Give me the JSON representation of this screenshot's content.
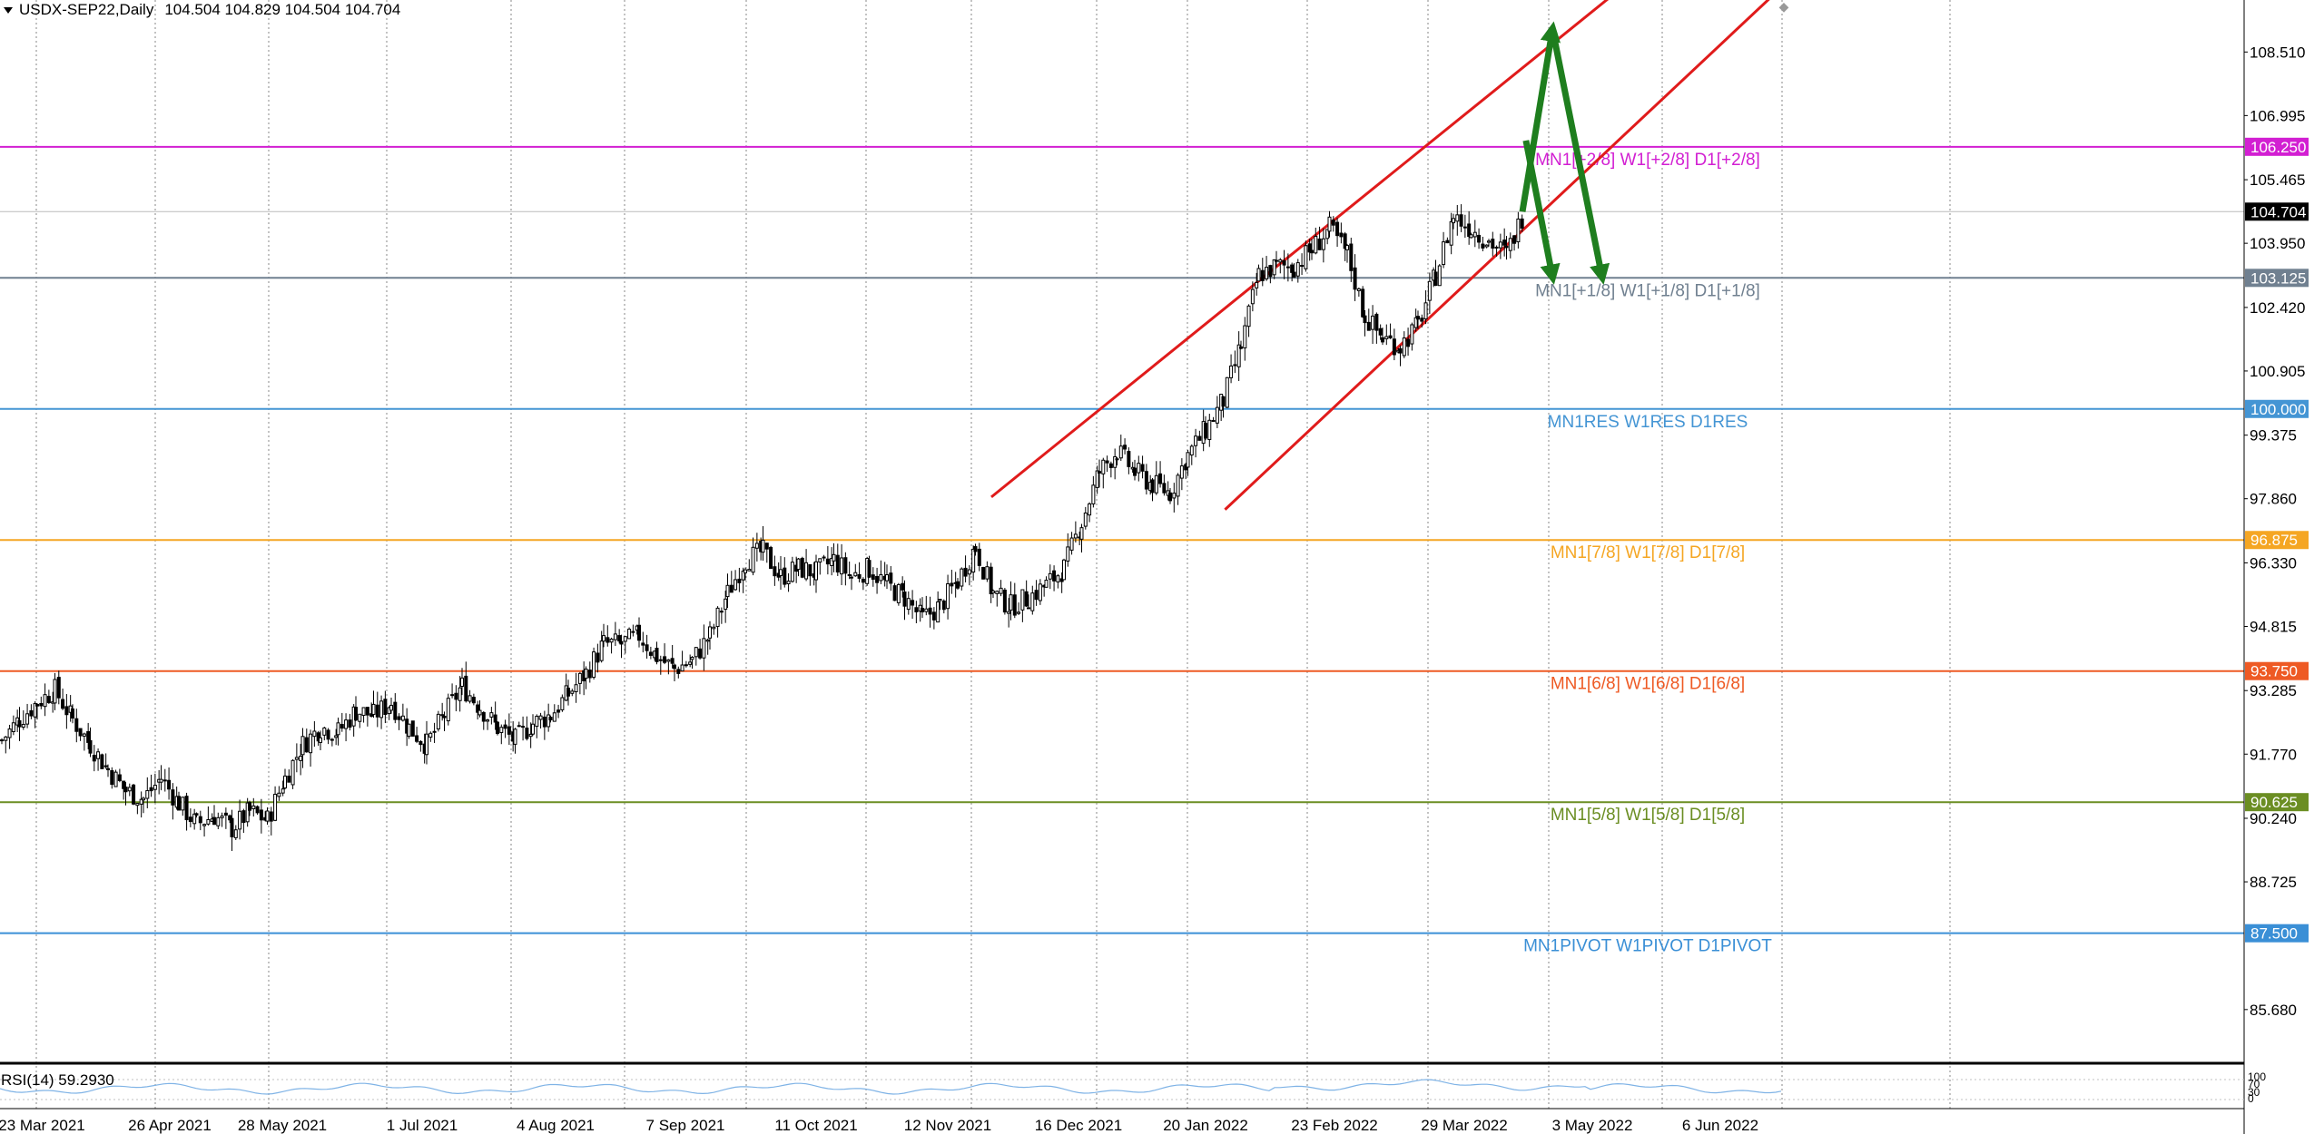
{
  "header": {
    "symbol_label": "USDX-SEP22,Daily",
    "ohlc_label": "104.504 104.829 104.504 104.704"
  },
  "rsi": {
    "label": "RSI(14) 59.2930",
    "scale_labels": [
      "100",
      "70",
      "30",
      "0"
    ]
  },
  "chart_data": {
    "type": "candlestick",
    "symbol": "USDX-SEP22",
    "timeframe": "Daily",
    "last": {
      "open": 104.504,
      "high": 104.829,
      "low": 104.504,
      "close": 104.704
    },
    "ylim": [
      84.4,
      109.75
    ],
    "y_ticks": [
      108.51,
      106.995,
      105.465,
      103.95,
      102.42,
      100.905,
      99.375,
      97.86,
      96.33,
      94.815,
      93.285,
      91.77,
      90.24,
      88.725,
      85.68
    ],
    "x_labels": [
      "23 Mar 2021",
      "26 Apr 2021",
      "28 May 2021",
      "1 Jul 2021",
      "4 Aug 2021",
      "7 Sep 2021",
      "11 Oct 2021",
      "12 Nov 2021",
      "16 Dec 2021",
      "20 Jan 2022",
      "23 Feb 2022",
      "29 Mar 2022",
      "3 May 2022",
      "6 Jun 2022"
    ],
    "close_path": [
      [
        0,
        92.1
      ],
      [
        10,
        92.6
      ],
      [
        20,
        93.0
      ],
      [
        30,
        93.3
      ],
      [
        40,
        92.6
      ],
      [
        50,
        92.0
      ],
      [
        60,
        91.4
      ],
      [
        70,
        90.9
      ],
      [
        80,
        90.7
      ],
      [
        90,
        91.2
      ],
      [
        100,
        90.6
      ],
      [
        110,
        90.1
      ],
      [
        120,
        90.3
      ],
      [
        130,
        90.0
      ],
      [
        140,
        90.4
      ],
      [
        150,
        90.2
      ],
      [
        160,
        91.2
      ],
      [
        170,
        92.0
      ],
      [
        180,
        92.4
      ],
      [
        190,
        92.3
      ],
      [
        200,
        92.8
      ],
      [
        210,
        92.7
      ],
      [
        220,
        93.0
      ],
      [
        230,
        92.4
      ],
      [
        240,
        92.0
      ],
      [
        250,
        92.7
      ],
      [
        260,
        93.4
      ],
      [
        270,
        92.9
      ],
      [
        280,
        92.4
      ],
      [
        290,
        92.1
      ],
      [
        300,
        92.5
      ],
      [
        310,
        92.7
      ],
      [
        320,
        93.2
      ],
      [
        330,
        93.7
      ],
      [
        340,
        94.4
      ],
      [
        350,
        94.4
      ],
      [
        360,
        94.6
      ],
      [
        370,
        94.1
      ],
      [
        380,
        93.8
      ],
      [
        390,
        94.0
      ],
      [
        400,
        94.6
      ],
      [
        410,
        95.6
      ],
      [
        420,
        96.4
      ],
      [
        430,
        96.6
      ],
      [
        440,
        96.0
      ],
      [
        450,
        96.2
      ],
      [
        460,
        96.1
      ],
      [
        470,
        96.4
      ],
      [
        480,
        96.0
      ],
      [
        490,
        96.2
      ],
      [
        500,
        95.8
      ],
      [
        510,
        95.5
      ],
      [
        520,
        95.0
      ],
      [
        530,
        95.3
      ],
      [
        540,
        95.9
      ],
      [
        550,
        96.7
      ],
      [
        560,
        95.6
      ],
      [
        570,
        95.3
      ],
      [
        580,
        95.5
      ],
      [
        590,
        95.8
      ],
      [
        600,
        96.2
      ],
      [
        610,
        97.3
      ],
      [
        620,
        98.5
      ],
      [
        630,
        99.0
      ],
      [
        640,
        98.5
      ],
      [
        650,
        98.2
      ],
      [
        660,
        98.0
      ],
      [
        670,
        98.9
      ],
      [
        680,
        99.5
      ],
      [
        690,
        100.2
      ],
      [
        700,
        101.5
      ],
      [
        710,
        103.2
      ],
      [
        720,
        103.4
      ],
      [
        730,
        103.4
      ],
      [
        740,
        103.8
      ],
      [
        750,
        104.3
      ],
      [
        760,
        103.7
      ],
      [
        770,
        102.2
      ],
      [
        780,
        101.7
      ],
      [
        790,
        101.5
      ],
      [
        800,
        102.0
      ],
      [
        810,
        103.2
      ],
      [
        820,
        104.6
      ],
      [
        830,
        104.3
      ],
      [
        840,
        104.0
      ],
      [
        850,
        103.7
      ],
      [
        860,
        104.704
      ]
    ],
    "horizontal_levels": [
      {
        "value": 106.25,
        "label": "MN1[+2/8] W1[+2/8] D1[+2/8]",
        "price_tag": "106.250",
        "color": "#d21fd2"
      },
      {
        "value": 103.125,
        "label": "MN1[+1/8] W1[+1/8] D1[+1/8]",
        "price_tag": "103.125",
        "color": "#708090"
      },
      {
        "value": 100.0,
        "label": "MN1RES W1RES D1RES",
        "price_tag": "100.000",
        "color": "#4495d4"
      },
      {
        "value": 96.875,
        "label": "MN1[7/8] W1[7/8] D1[7/8]",
        "price_tag": "96.875",
        "color": "#f5a623"
      },
      {
        "value": 93.75,
        "label": "MN1[6/8] W1[6/8] D1[6/8]",
        "price_tag": "93.750",
        "color": "#ee5a24"
      },
      {
        "value": 90.625,
        "label": "MN1[5/8] W1[5/8] D1[5/8]",
        "price_tag": "90.625",
        "color": "#6b8e23"
      },
      {
        "value": 87.5,
        "label": "MN1PIVOT W1PIVOT D1PIVOT",
        "price_tag": "87.500",
        "color": "#3a8fd6"
      }
    ],
    "current_price_tag": "104.704",
    "channel": {
      "color": "#e01b1b",
      "upper": [
        [
          560,
          97.9
        ],
        [
          909,
          109.8
        ]
      ],
      "lower": [
        [
          692,
          97.6
        ],
        [
          1000,
          109.8
        ]
      ]
    },
    "projection_arrows": {
      "color": "#1e7e1e",
      "upper_path": [
        [
          860,
          104.704
        ],
        [
          877,
          109.05
        ],
        [
          905,
          103.15
        ]
      ],
      "lower_path": [
        [
          862,
          106.4
        ],
        [
          877,
          103.15
        ]
      ]
    },
    "grid": true
  }
}
